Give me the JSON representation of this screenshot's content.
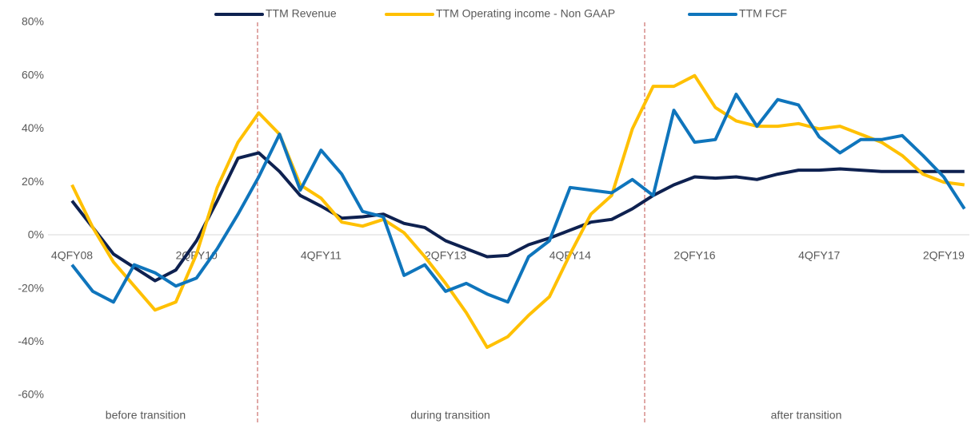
{
  "chart_data": {
    "type": "line",
    "categories": [
      "4QFY08",
      null,
      null,
      null,
      null,
      null,
      "2QFY10",
      null,
      null,
      null,
      null,
      null,
      "4QFY11",
      null,
      null,
      null,
      null,
      null,
      "2QFY13",
      null,
      null,
      null,
      null,
      null,
      "4QFY14",
      null,
      null,
      null,
      null,
      null,
      "2QFY16",
      null,
      null,
      null,
      null,
      null,
      "4QFY17",
      null,
      null,
      null,
      null,
      null,
      "2QFY19",
      null
    ],
    "series": [
      {
        "name": "TTM Revenue",
        "color": "#0e2150",
        "values": [
          13,
          3,
          -7,
          -12,
          -17,
          -13,
          -2,
          13,
          29,
          31,
          24,
          15,
          11,
          6.5,
          7,
          8,
          4.5,
          3,
          -2,
          -5,
          -8,
          -7.5,
          -3.5,
          -1,
          2,
          5,
          6,
          10,
          15,
          19,
          22,
          21.5,
          22,
          21,
          23,
          24.5,
          24.5,
          25,
          24.5,
          24,
          24,
          24,
          24,
          24
        ]
      },
      {
        "name": "TTM Operating income - Non GAAP",
        "color": "#ffc000",
        "values": [
          19,
          3,
          -10,
          -19,
          -28,
          -25,
          -7,
          18,
          35,
          46,
          38,
          19,
          14,
          5,
          3.5,
          6,
          1,
          -8,
          -18,
          -29,
          -42,
          -38,
          -30,
          -23,
          -7,
          8,
          15,
          40,
          56,
          56,
          60,
          48,
          43,
          41,
          41,
          42,
          40,
          41,
          38,
          35,
          30,
          23,
          20,
          19
        ]
      },
      {
        "name": "TTM FCF",
        "color": "#0f75bc",
        "values": [
          -11,
          -21,
          -25,
          -11,
          -14,
          -19,
          -16,
          -5,
          8,
          22,
          38,
          17,
          32,
          23,
          9,
          7,
          -15,
          -11,
          -21,
          -18,
          -22,
          -25,
          -8,
          -2,
          18,
          17,
          16,
          21,
          15,
          47,
          35,
          36,
          53,
          41,
          51,
          49,
          37,
          31,
          36,
          36,
          37.5,
          30,
          22,
          10
        ]
      }
    ],
    "ylim": [
      -60,
      80
    ],
    "yticks": [
      {
        "value": -60,
        "label": "-60%"
      },
      {
        "value": -40,
        "label": "-40%"
      },
      {
        "value": -20,
        "label": "-20%"
      },
      {
        "value": 0,
        "label": "0%"
      },
      {
        "value": 20,
        "label": "20%"
      },
      {
        "value": 40,
        "label": "40%"
      },
      {
        "value": 60,
        "label": "60%"
      },
      {
        "value": 80,
        "label": "80%"
      }
    ],
    "grid": false,
    "legend": "top",
    "annotations": [
      "before transition",
      "during transition",
      "after transition"
    ]
  }
}
